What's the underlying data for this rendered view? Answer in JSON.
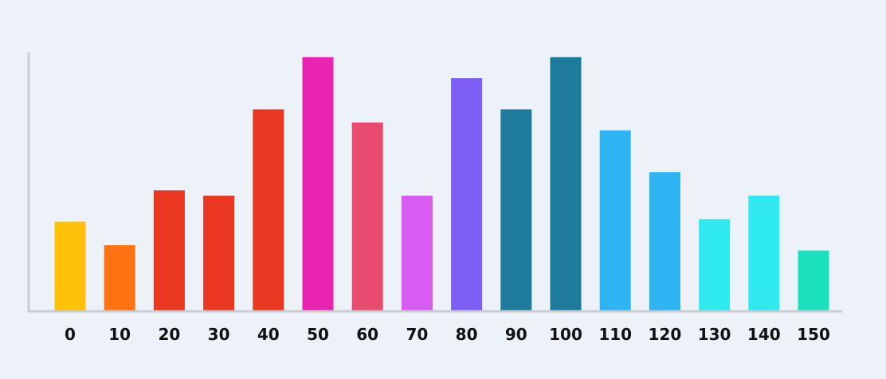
{
  "chart_data": {
    "type": "bar",
    "title": "",
    "xlabel": "",
    "ylabel": "",
    "categories": [
      "0",
      "10",
      "20",
      "30",
      "40",
      "50",
      "60",
      "70",
      "80",
      "90",
      "100",
      "110",
      "120",
      "130",
      "140",
      "150"
    ],
    "values": [
      34,
      25,
      46,
      44,
      77,
      97,
      72,
      44,
      89,
      77,
      97,
      69,
      53,
      35,
      44,
      23
    ],
    "ylim": [
      0,
      100
    ],
    "grid": false,
    "colors": [
      "#ffc107",
      "#ff7212",
      "#ea3721",
      "#ea3721",
      "#ea3721",
      "#e824b0",
      "#e84a70",
      "#d95cf2",
      "#7e5ff5",
      "#1f7b9b",
      "#1f7b9b",
      "#2db4f2",
      "#2db4f2",
      "#2ee9ef",
      "#2ee9ef",
      "#1be0bd"
    ]
  }
}
